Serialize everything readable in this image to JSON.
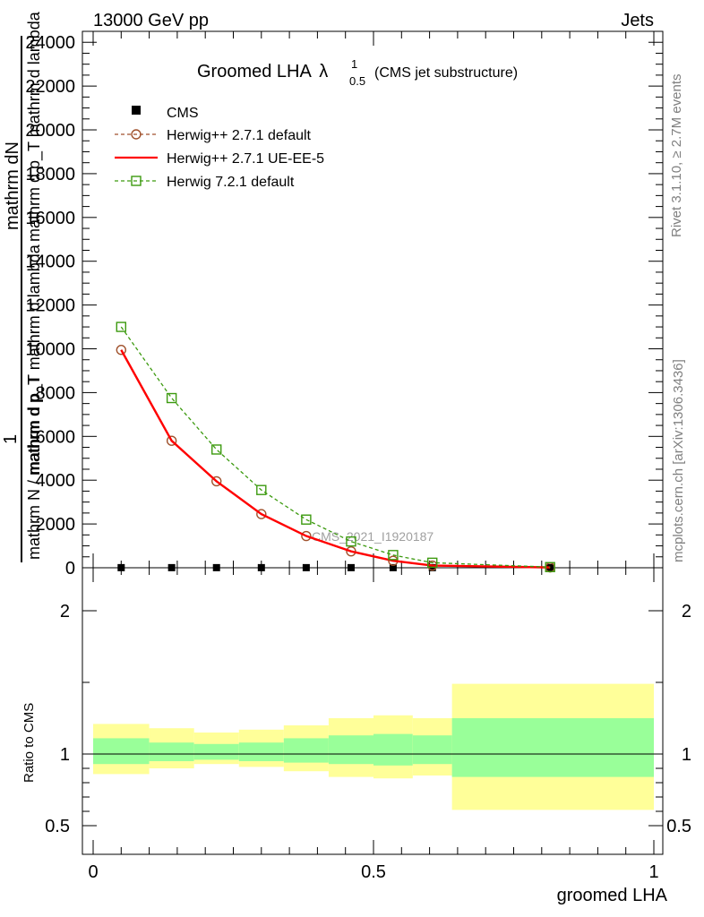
{
  "header": {
    "left": "13000 GeV pp",
    "right": "Jets"
  },
  "title": {
    "main": "Groomed LHA",
    "lambda": "λ",
    "lambda_sup": "1",
    "lambda_sub": "0.5",
    "note": "(CMS jet substructure)"
  },
  "side_labels": {
    "rivet": "Rivet 3.1.10, ≥ 2.7M events",
    "mcplots": "mcplots.cern.ch [arXiv:1306.3436]"
  },
  "watermark": "CMS_2021_I1920187",
  "colors": {
    "cms": "#000000",
    "herwig_default": "#a0522d",
    "herwig_ueee5": "#ff0000",
    "herwig721": "#3c9a0f",
    "band_inner": "#99ff99",
    "band_outer": "#ffff99"
  },
  "chart_data": [
    {
      "type": "line",
      "panel": "main",
      "ylabel_lines": [
        "1",
        "mathrm d N / mathrm d p_T",
        "mathrm d N",
        "mathrm d p_T mathrm d lambda"
      ],
      "ylabel_fragments": [
        "mathrm dN",
        "mathrm d p_T mathrm d lambda",
        "mathrm d p_T mathrm d lambda",
        "1",
        "mathrm N / mathrm d p_T"
      ],
      "xlim": [
        0,
        1
      ],
      "ylim": [
        0,
        24500
      ],
      "yticks": [
        "0",
        "2000",
        "4000",
        "6000",
        "8000",
        "10000",
        "12000",
        "14000",
        "16000",
        "18000",
        "20000",
        "22000",
        "24000"
      ],
      "ytick_values": [
        0,
        2000,
        4000,
        6000,
        8000,
        10000,
        12000,
        14000,
        16000,
        18000,
        20000,
        22000,
        24000
      ],
      "legend_placement": "top-left",
      "series": [
        {
          "name": "CMS",
          "style": "square-marker",
          "x": [
            0.05,
            0.14,
            0.22,
            0.3,
            0.38,
            0.46,
            0.535,
            0.605,
            0.815
          ],
          "values": [
            5,
            5,
            5,
            5,
            5,
            5,
            5,
            5,
            5
          ]
        },
        {
          "name": "Herwig++ 2.7.1 default",
          "style": "dashed-circle",
          "x": [
            0.05,
            0.14,
            0.22,
            0.3,
            0.38,
            0.46,
            0.535,
            0.605,
            0.815
          ],
          "values": [
            9950,
            5800,
            3950,
            2450,
            1450,
            750,
            320,
            100,
            15
          ]
        },
        {
          "name": "Herwig++ 2.7.1 UE-EE-5",
          "style": "solid",
          "x": [
            0.05,
            0.14,
            0.22,
            0.3,
            0.38,
            0.46,
            0.535,
            0.605,
            0.815
          ],
          "values": [
            9950,
            5800,
            3950,
            2450,
            1450,
            750,
            320,
            100,
            15
          ]
        },
        {
          "name": "Herwig 7.2.1 default",
          "style": "dashed-square",
          "x": [
            0.05,
            0.14,
            0.22,
            0.3,
            0.38,
            0.46,
            0.535,
            0.605,
            0.815
          ],
          "values": [
            11000,
            7750,
            5400,
            3550,
            2200,
            1200,
            580,
            230,
            30
          ]
        }
      ]
    },
    {
      "type": "area",
      "panel": "ratio",
      "ylabel": "Ratio to CMS",
      "xlabel": "groomed LHA",
      "xlim": [
        0,
        1
      ],
      "ylim": [
        0.3,
        2.3
      ],
      "yticks": [
        "0.5",
        "1",
        "2"
      ],
      "ytick_values": [
        0.5,
        1,
        2
      ],
      "xticks": [
        "0",
        "0.5",
        "1"
      ],
      "xtick_values": [
        0,
        0.5,
        1
      ],
      "reference_line": 1,
      "bins": [
        {
          "x_lo": 0.0,
          "x_hi": 0.1,
          "inner": [
            0.93,
            1.11
          ],
          "outer": [
            0.86,
            1.21
          ]
        },
        {
          "x_lo": 0.1,
          "x_hi": 0.18,
          "inner": [
            0.95,
            1.08
          ],
          "outer": [
            0.9,
            1.18
          ]
        },
        {
          "x_lo": 0.18,
          "x_hi": 0.26,
          "inner": [
            0.96,
            1.07
          ],
          "outer": [
            0.93,
            1.15
          ]
        },
        {
          "x_lo": 0.26,
          "x_hi": 0.34,
          "inner": [
            0.95,
            1.08
          ],
          "outer": [
            0.91,
            1.17
          ]
        },
        {
          "x_lo": 0.34,
          "x_hi": 0.42,
          "inner": [
            0.94,
            1.11
          ],
          "outer": [
            0.88,
            1.2
          ]
        },
        {
          "x_lo": 0.42,
          "x_hi": 0.5,
          "inner": [
            0.93,
            1.13
          ],
          "outer": [
            0.84,
            1.25
          ]
        },
        {
          "x_lo": 0.5,
          "x_hi": 0.57,
          "inner": [
            0.92,
            1.14
          ],
          "outer": [
            0.83,
            1.27
          ]
        },
        {
          "x_lo": 0.57,
          "x_hi": 0.64,
          "inner": [
            0.93,
            1.13
          ],
          "outer": [
            0.85,
            1.25
          ]
        },
        {
          "x_lo": 0.64,
          "x_hi": 1.0,
          "inner": [
            0.84,
            1.25
          ],
          "outer": [
            0.61,
            1.49
          ]
        }
      ]
    }
  ]
}
